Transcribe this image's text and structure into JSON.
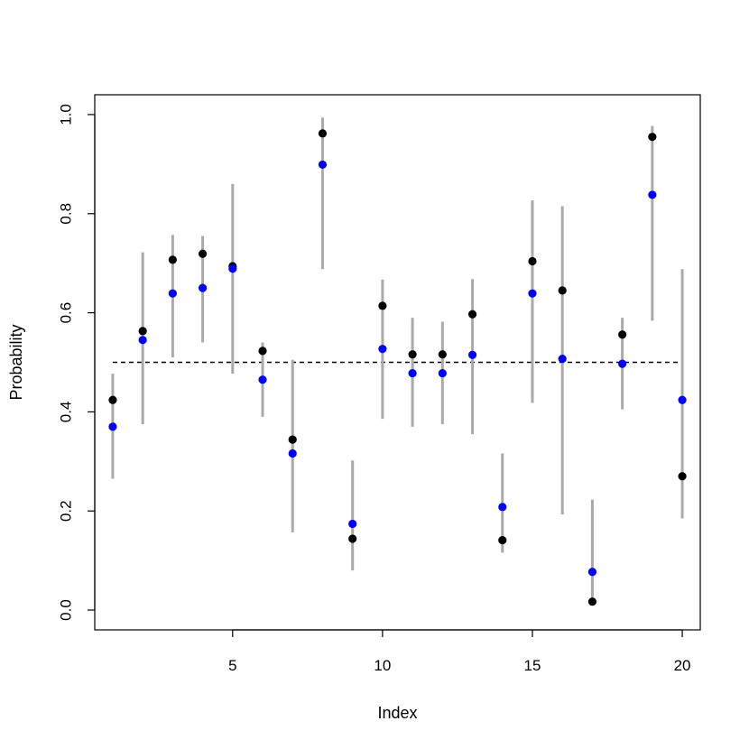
{
  "chart_data": {
    "type": "scatter",
    "xlabel": "Index",
    "ylabel": "Probability",
    "xlim": [
      0.4,
      20.6
    ],
    "ylim": [
      -0.04,
      1.04
    ],
    "x_ticks": [
      5,
      10,
      15,
      20
    ],
    "y_ticks": [
      0.0,
      0.2,
      0.4,
      0.6,
      0.8,
      1.0
    ],
    "x_tick_labels": [
      "5",
      "10",
      "15",
      "20"
    ],
    "y_tick_labels": [
      "0.0",
      "0.2",
      "0.4",
      "0.6",
      "0.8",
      "1.0"
    ],
    "reference_line": {
      "y": 0.5,
      "x_from": 1,
      "x_to": 19.9,
      "style": "dashed",
      "color": "#000000"
    },
    "intervals": {
      "color": "#aaaaaa",
      "x": [
        1,
        2,
        3,
        4,
        5,
        6,
        7,
        8,
        9,
        10,
        11,
        12,
        13,
        14,
        15,
        16,
        17,
        18,
        19,
        20
      ],
      "lower": [
        0.265,
        0.375,
        0.51,
        0.54,
        0.477,
        0.39,
        0.157,
        0.688,
        0.08,
        0.386,
        0.37,
        0.375,
        0.355,
        0.116,
        0.418,
        0.193,
        0.015,
        0.405,
        0.584,
        0.185
      ],
      "upper": [
        0.477,
        0.722,
        0.757,
        0.755,
        0.86,
        0.54,
        0.505,
        0.994,
        0.302,
        0.667,
        0.59,
        0.582,
        0.668,
        0.316,
        0.827,
        0.815,
        0.223,
        0.59,
        0.977,
        0.688
      ]
    },
    "series": [
      {
        "color": "#000000",
        "x": [
          1,
          2,
          3,
          4,
          5,
          6,
          7,
          8,
          9,
          10,
          11,
          12,
          13,
          14,
          15,
          16,
          17,
          18,
          19,
          20
        ],
        "values": [
          0.424,
          0.563,
          0.707,
          0.719,
          0.694,
          0.523,
          0.344,
          0.962,
          0.144,
          0.614,
          0.516,
          0.516,
          0.597,
          0.141,
          0.704,
          0.645,
          0.017,
          0.556,
          0.955,
          0.27
        ]
      },
      {
        "color": "#0000ff",
        "x": [
          1,
          2,
          3,
          4,
          5,
          6,
          7,
          8,
          9,
          10,
          11,
          12,
          13,
          14,
          15,
          16,
          17,
          18,
          19,
          20
        ],
        "values": [
          0.37,
          0.545,
          0.639,
          0.65,
          0.689,
          0.465,
          0.316,
          0.899,
          0.174,
          0.527,
          0.478,
          0.478,
          0.515,
          0.208,
          0.639,
          0.507,
          0.077,
          0.497,
          0.838,
          0.424
        ]
      }
    ]
  }
}
